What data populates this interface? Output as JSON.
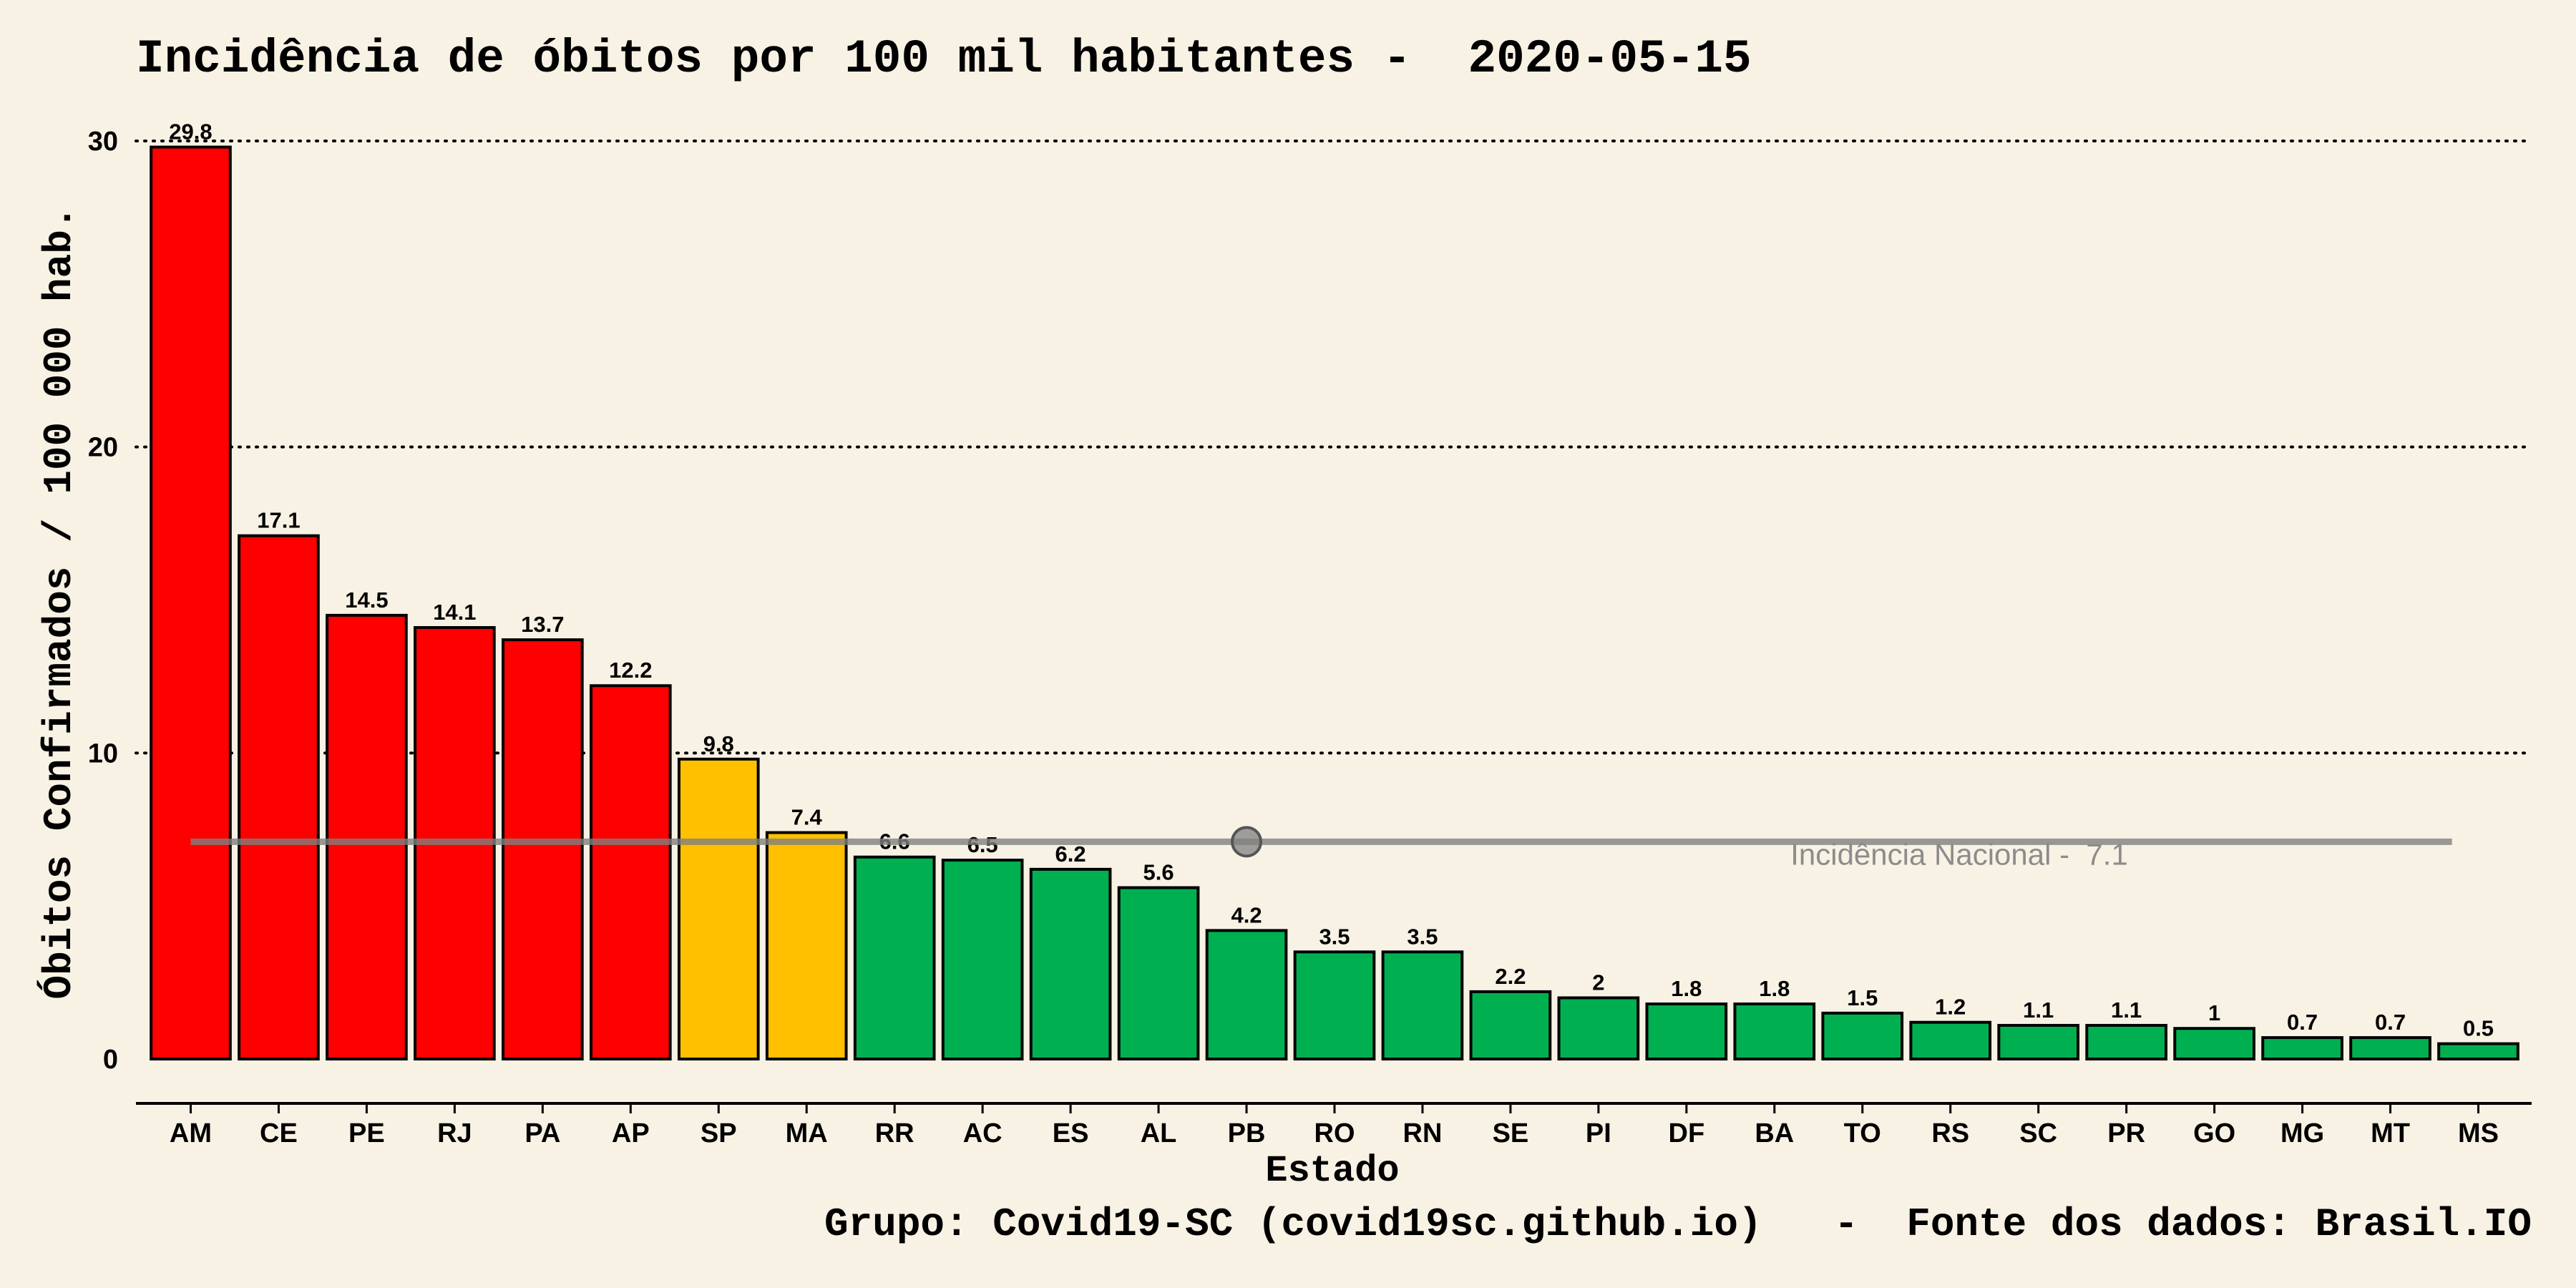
{
  "colors": {
    "background": "#f8f2e4",
    "high": "#ff0000",
    "medium": "#ffc000",
    "low": "#00b050",
    "national_line": "#808080"
  },
  "chart_data": {
    "type": "bar",
    "title": "Incidência de óbitos por 100 mil habitantes -  2020-05-15",
    "xlabel": "Estado",
    "ylabel": "Óbitos Confirmados / 100 000 hab.",
    "caption": "Grupo: Covid19-SC (covid19sc.github.io)   -  Fonte dos dados: Brasil.IO",
    "ylim": [
      0,
      30
    ],
    "yticks": [
      0,
      10,
      20,
      30
    ],
    "grid": "horizontal-dotted",
    "categories": [
      "AM",
      "CE",
      "PE",
      "RJ",
      "PA",
      "AP",
      "SP",
      "MA",
      "RR",
      "AC",
      "ES",
      "AL",
      "PB",
      "RO",
      "RN",
      "SE",
      "PI",
      "DF",
      "BA",
      "TO",
      "RS",
      "SC",
      "PR",
      "GO",
      "MG",
      "MT",
      "MS"
    ],
    "values": [
      29.8,
      17.1,
      14.5,
      14.1,
      13.7,
      12.2,
      9.8,
      7.4,
      6.6,
      6.5,
      6.2,
      5.6,
      4.2,
      3.5,
      3.5,
      2.2,
      2,
      1.8,
      1.8,
      1.5,
      1.2,
      1.1,
      1.1,
      1,
      0.7,
      0.7,
      0.5
    ],
    "value_labels": [
      "29.8",
      "17.1",
      "14.5",
      "14.1",
      "13.7",
      "12.2",
      "9.8",
      "7.4",
      "6.6",
      "6.5",
      "6.2",
      "5.6",
      "4.2",
      "3.5",
      "3.5",
      "2.2",
      "2",
      "1.8",
      "1.8",
      "1.5",
      "1.2",
      "1.1",
      "1.1",
      "1",
      "0.7",
      "0.7",
      "0.5"
    ],
    "color_groups": [
      "high",
      "high",
      "high",
      "high",
      "high",
      "high",
      "medium",
      "medium",
      "low",
      "low",
      "low",
      "low",
      "low",
      "low",
      "low",
      "low",
      "low",
      "low",
      "low",
      "low",
      "low",
      "low",
      "low",
      "low",
      "low",
      "low",
      "low"
    ],
    "national_incidence": {
      "label": "Incidência Nacional -  7.1",
      "value": 7.1
    }
  }
}
